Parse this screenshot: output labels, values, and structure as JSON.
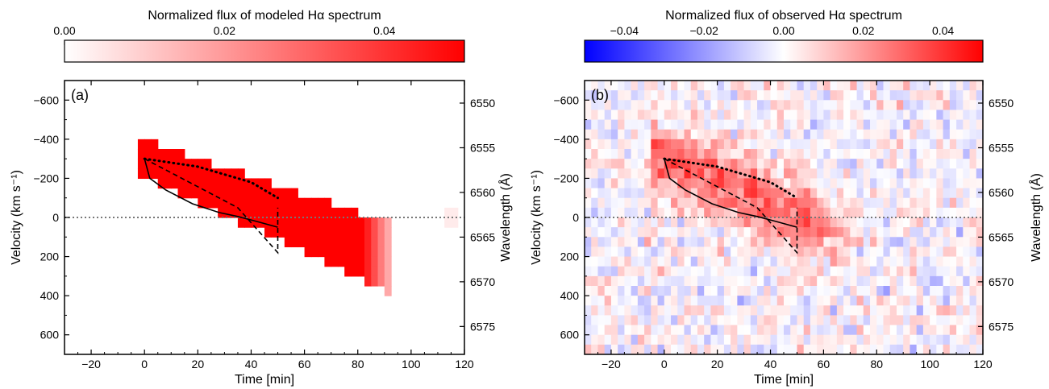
{
  "chart_data": [
    {
      "type": "heatmap",
      "panel_label": "(a)",
      "colorbar": {
        "label": "Normalized flux of modeled Hα spectrum",
        "range": [
          0.0,
          0.05
        ],
        "ticks": [
          0.0,
          0.02,
          0.04
        ],
        "tick_labels": [
          "0.00",
          "0.02",
          "0.04"
        ],
        "colors": [
          "#ffffff",
          "#ff0000"
        ]
      },
      "xlabel": "Time [min]",
      "ylabel": "Velocity (km s⁻¹)",
      "ylabel_right": "Wavelength (Å)",
      "xlim": [
        -30,
        120
      ],
      "ylim": [
        700,
        -700
      ],
      "xticks": [
        -20,
        0,
        20,
        40,
        60,
        80,
        100,
        120
      ],
      "yticks": [
        -600,
        -400,
        -200,
        0,
        200,
        400,
        600
      ],
      "ytick_labels": [
        "−600",
        "−400",
        "−200",
        "0",
        "200",
        "400",
        "600"
      ],
      "right_ticks": [
        6550,
        6555,
        6560,
        6565,
        6570,
        6575
      ],
      "zero_line": 0,
      "solid_curve": [
        [
          0,
          -300
        ],
        [
          2,
          -200
        ],
        [
          8,
          -140
        ],
        [
          18,
          -70
        ],
        [
          28,
          -25
        ],
        [
          35,
          -5
        ],
        [
          42,
          20
        ],
        [
          50,
          50
        ]
      ],
      "dashed_curve": [
        [
          0,
          -300
        ],
        [
          35,
          -50
        ],
        [
          50,
          180
        ],
        [
          50,
          -50
        ]
      ],
      "dotted_curve": [
        [
          0,
          -300
        ],
        [
          20,
          -260
        ],
        [
          40,
          -180
        ],
        [
          50,
          -100
        ]
      ]
    },
    {
      "type": "heatmap",
      "panel_label": "(b)",
      "colorbar": {
        "label": "Normalized flux of observed Hα spectrum",
        "range": [
          -0.05,
          0.05
        ],
        "ticks": [
          -0.04,
          -0.02,
          0.0,
          0.02,
          0.04
        ],
        "tick_labels": [
          "−0.04",
          "−0.02",
          "0.00",
          "0.02",
          "0.04"
        ],
        "colors": [
          "#0000ff",
          "#ffffff",
          "#ff0000"
        ]
      },
      "xlabel": "Time [min]",
      "ylabel": "Velocity (km s⁻¹)",
      "ylabel_right": "Wavelength (Å)",
      "xlim": [
        -30,
        120
      ],
      "ylim": [
        700,
        -700
      ],
      "xticks": [
        -20,
        0,
        20,
        40,
        60,
        80,
        100,
        120
      ],
      "yticks": [
        -600,
        -400,
        -200,
        0,
        200,
        400,
        600
      ],
      "ytick_labels": [
        "−600",
        "−400",
        "−200",
        "0",
        "200",
        "400",
        "600"
      ],
      "right_ticks": [
        6550,
        6555,
        6560,
        6565,
        6570,
        6575
      ],
      "zero_line": 0,
      "solid_curve": [
        [
          0,
          -300
        ],
        [
          2,
          -200
        ],
        [
          8,
          -140
        ],
        [
          18,
          -70
        ],
        [
          28,
          -25
        ],
        [
          35,
          -5
        ],
        [
          42,
          20
        ],
        [
          50,
          50
        ]
      ],
      "dashed_curve": [
        [
          0,
          -300
        ],
        [
          35,
          -50
        ],
        [
          50,
          180
        ],
        [
          50,
          -50
        ]
      ],
      "dotted_curve": [
        [
          0,
          -300
        ],
        [
          20,
          -260
        ],
        [
          40,
          -180
        ],
        [
          50,
          -100
        ]
      ]
    }
  ]
}
